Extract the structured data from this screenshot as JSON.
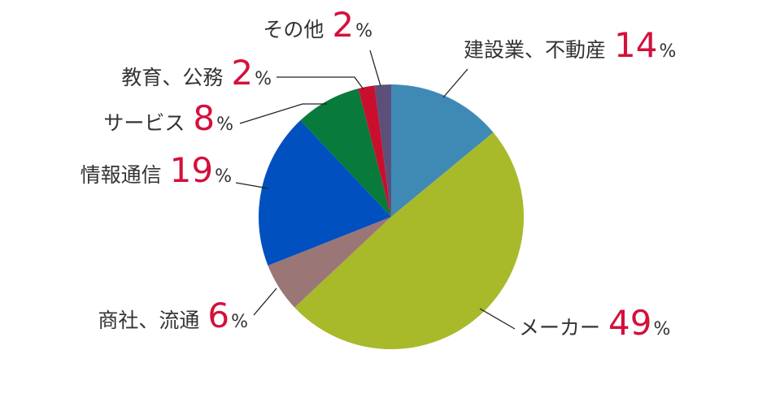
{
  "chart_data": {
    "type": "pie",
    "categories": [
      "建設業、不動産",
      "メーカー",
      "商社、流通",
      "情報通信",
      "サービス",
      "教育、公務",
      "その他"
    ],
    "values": [
      14,
      49,
      6,
      19,
      8,
      2,
      2
    ],
    "colors": [
      "#3f8ab5",
      "#a8b92a",
      "#9b7677",
      "#0050c0",
      "#077a3c",
      "#c8102e",
      "#5c4f7a"
    ],
    "unit": "%"
  }
}
